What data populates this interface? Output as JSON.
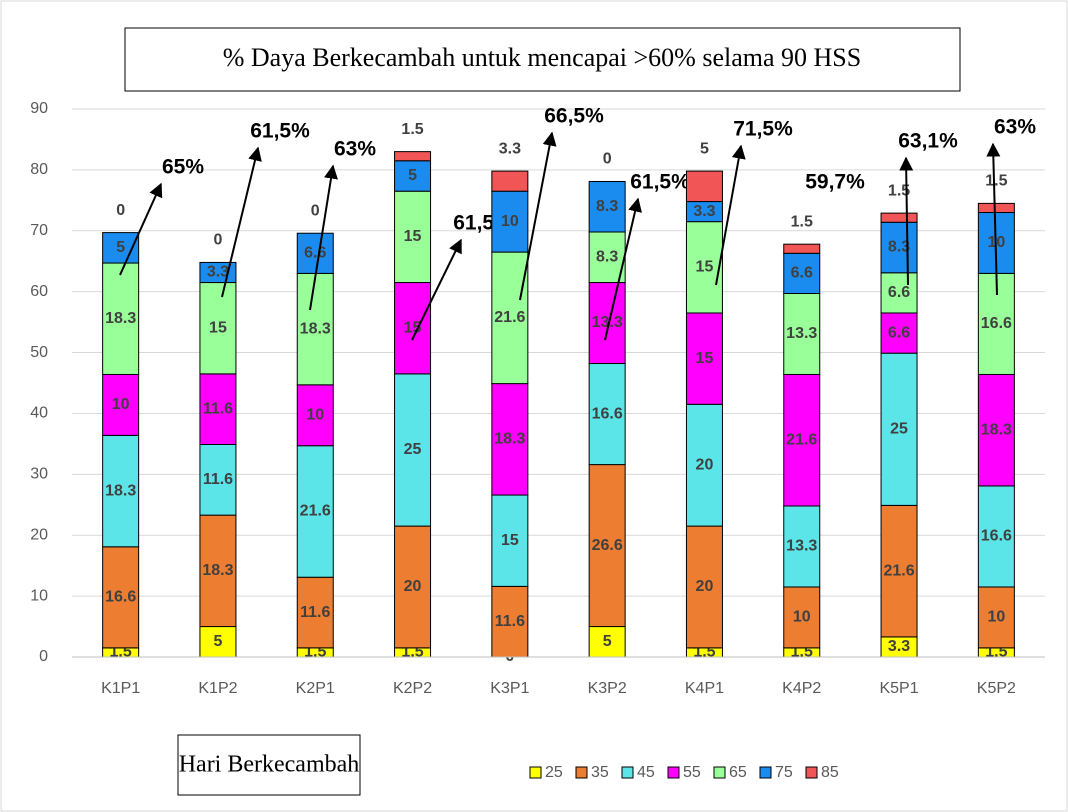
{
  "chart_data": {
    "type": "stacked_bar",
    "title": "% Daya Berkecambah untuk mencapai >60% selama 90 HSS",
    "x_label": "Hari Berkecambah",
    "categories": [
      "K1P1",
      "K1P2",
      "K2P1",
      "K2P2",
      "K3P1",
      "K3P2",
      "K4P1",
      "K4P2",
      "K5P1",
      "K5P2"
    ],
    "series": [
      {
        "name": "25",
        "color": "#ffff00",
        "values": [
          1.5,
          5,
          1.5,
          1.5,
          0,
          5,
          1.5,
          1.5,
          3.3,
          1.5
        ]
      },
      {
        "name": "35",
        "color": "#ed7d31",
        "values": [
          16.6,
          18.3,
          11.6,
          20,
          11.6,
          26.6,
          20,
          10,
          21.6,
          10
        ]
      },
      {
        "name": "45",
        "color": "#5ce5e8",
        "values": [
          18.3,
          11.6,
          21.6,
          25,
          15,
          16.6,
          20,
          13.3,
          25,
          16.6
        ]
      },
      {
        "name": "55",
        "color": "#ff00ff",
        "values": [
          10,
          11.6,
          10,
          15,
          18.3,
          13.3,
          15,
          21.6,
          6.6,
          18.3
        ]
      },
      {
        "name": "65",
        "color": "#99ff99",
        "values": [
          18.3,
          15,
          18.3,
          15,
          21.6,
          8.3,
          15,
          13.3,
          6.6,
          16.6
        ]
      },
      {
        "name": "75",
        "color": "#1a8cf0",
        "values": [
          5,
          3.3,
          6.6,
          5,
          10,
          8.3,
          3.3,
          6.6,
          8.3,
          10
        ]
      },
      {
        "name": "85",
        "color": "#f25555",
        "values": [
          0,
          0,
          0,
          1.5,
          3.3,
          0,
          5,
          1.5,
          1.5,
          1.5
        ]
      }
    ],
    "annotations": [
      "65%",
      "61,5%",
      "63%",
      "61,5%",
      "66,5%",
      "61,5%",
      "71,5%",
      "59,7%",
      "63,1%",
      "63%"
    ],
    "ylim": [
      0,
      90
    ],
    "yticks": [
      0,
      10,
      20,
      30,
      40,
      50,
      60,
      70,
      80,
      90
    ],
    "grid": true
  }
}
